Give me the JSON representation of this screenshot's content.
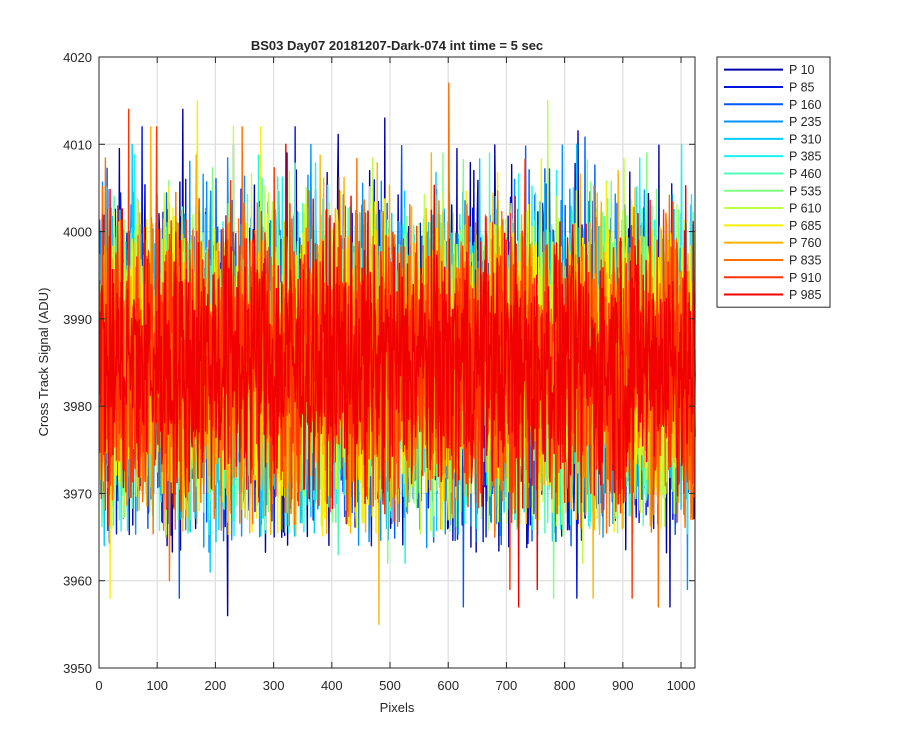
{
  "chart_data": {
    "type": "line",
    "title": "BS03 Day07 20181207-Dark-074 int time = 5 sec",
    "xlabel": "Pixels",
    "ylabel": "Cross Track Signal (ADU)",
    "xlim": [
      0,
      1024
    ],
    "ylim": [
      3950,
      4020
    ],
    "xticks": [
      0,
      100,
      200,
      300,
      400,
      500,
      600,
      700,
      800,
      900,
      1000
    ],
    "yticks": [
      3950,
      3960,
      3970,
      3980,
      3990,
      4000,
      4010,
      4020
    ],
    "grid": true,
    "legend_position": "outside-right-top",
    "series": [
      {
        "name": "P 10",
        "color": "#0000a8",
        "mean": 3985,
        "low": 3963,
        "high": 4014,
        "peaks": [
          [
            143,
            4014
          ],
          [
            490,
            4013
          ]
        ],
        "dips": [
          [
            220,
            3956
          ],
          [
            980,
            3957
          ]
        ]
      },
      {
        "name": "P 85",
        "color": "#0014e0",
        "mean": 3985,
        "low": 3964,
        "high": 4012,
        "peaks": [
          [
            336,
            4012
          ],
          [
            73,
            4012
          ]
        ],
        "dips": [
          [
            820,
            3958
          ]
        ]
      },
      {
        "name": "P 160",
        "color": "#0058ff",
        "mean": 3985,
        "low": 3964,
        "high": 4011,
        "peaks": [
          [
            770,
            4012
          ]
        ],
        "dips": [
          [
            137,
            3958
          ],
          [
            625,
            3957
          ]
        ]
      },
      {
        "name": "P 235",
        "color": "#0094ff",
        "mean": 3985,
        "low": 3963,
        "high": 4011,
        "peaks": [
          [
            820,
            4010
          ]
        ],
        "dips": [
          [
            1010,
            3959
          ]
        ]
      },
      {
        "name": "P 310",
        "color": "#00ccff",
        "mean": 3985,
        "low": 3964,
        "high": 4010,
        "peaks": [
          [
            56,
            4010
          ],
          [
            820,
            4010
          ]
        ],
        "dips": [
          [
            190,
            3961
          ]
        ]
      },
      {
        "name": "P 385",
        "color": "#18f4f0",
        "mean": 3985,
        "low": 3965,
        "high": 4010,
        "peaks": [
          [
            1000,
            4010
          ]
        ],
        "dips": [
          [
            525,
            3962
          ]
        ]
      },
      {
        "name": "P 460",
        "color": "#4cffb8",
        "mean": 3985,
        "low": 3965,
        "high": 4009,
        "peaks": [
          [
            670,
            4009
          ]
        ],
        "dips": [
          [
            410,
            3963
          ]
        ]
      },
      {
        "name": "P 535",
        "color": "#80ff80",
        "mean": 3985,
        "low": 3965,
        "high": 4009,
        "peaks": [
          [
            590,
            4009
          ]
        ],
        "dips": [
          [
            495,
            3962
          ],
          [
            780,
            3958
          ]
        ]
      },
      {
        "name": "P 610",
        "color": "#bcff44",
        "mean": 3985,
        "low": 3965,
        "high": 4010,
        "peaks": [
          [
            770,
            4015
          ],
          [
            230,
            4012
          ]
        ],
        "dips": [
          [
            830,
            3962
          ]
        ]
      },
      {
        "name": "P 685",
        "color": "#f8f000",
        "mean": 3985,
        "low": 3965,
        "high": 4011,
        "peaks": [
          [
            168,
            4015
          ],
          [
            277,
            4012
          ]
        ],
        "dips": [
          [
            18,
            3958
          ]
        ]
      },
      {
        "name": "P 760",
        "color": "#ffb400",
        "mean": 3985,
        "low": 3965,
        "high": 4010,
        "peaks": [
          [
            88,
            4012
          ],
          [
            570,
            4009
          ]
        ],
        "dips": [
          [
            480,
            3955
          ],
          [
            848,
            3958
          ]
        ]
      },
      {
        "name": "P 835",
        "color": "#ff7000",
        "mean": 3985,
        "low": 3965,
        "high": 4010,
        "peaks": [
          [
            600,
            4017
          ],
          [
            245,
            4012
          ]
        ],
        "dips": [
          [
            120,
            3960
          ],
          [
            960,
            3957
          ]
        ]
      },
      {
        "name": "P 910",
        "color": "#ff3400",
        "mean": 3985,
        "low": 3966,
        "high": 4010,
        "peaks": [
          [
            50,
            4014
          ],
          [
            98,
            4012
          ]
        ],
        "dips": [
          [
            705,
            3959
          ],
          [
            915,
            3958
          ]
        ]
      },
      {
        "name": "P 985",
        "color": "#f00000",
        "mean": 3985,
        "low": 3968,
        "high": 4007,
        "peaks": [
          [
            320,
            4010
          ]
        ],
        "dips": [
          [
            720,
            3957
          ],
          [
            752,
            3959
          ]
        ]
      }
    ]
  }
}
